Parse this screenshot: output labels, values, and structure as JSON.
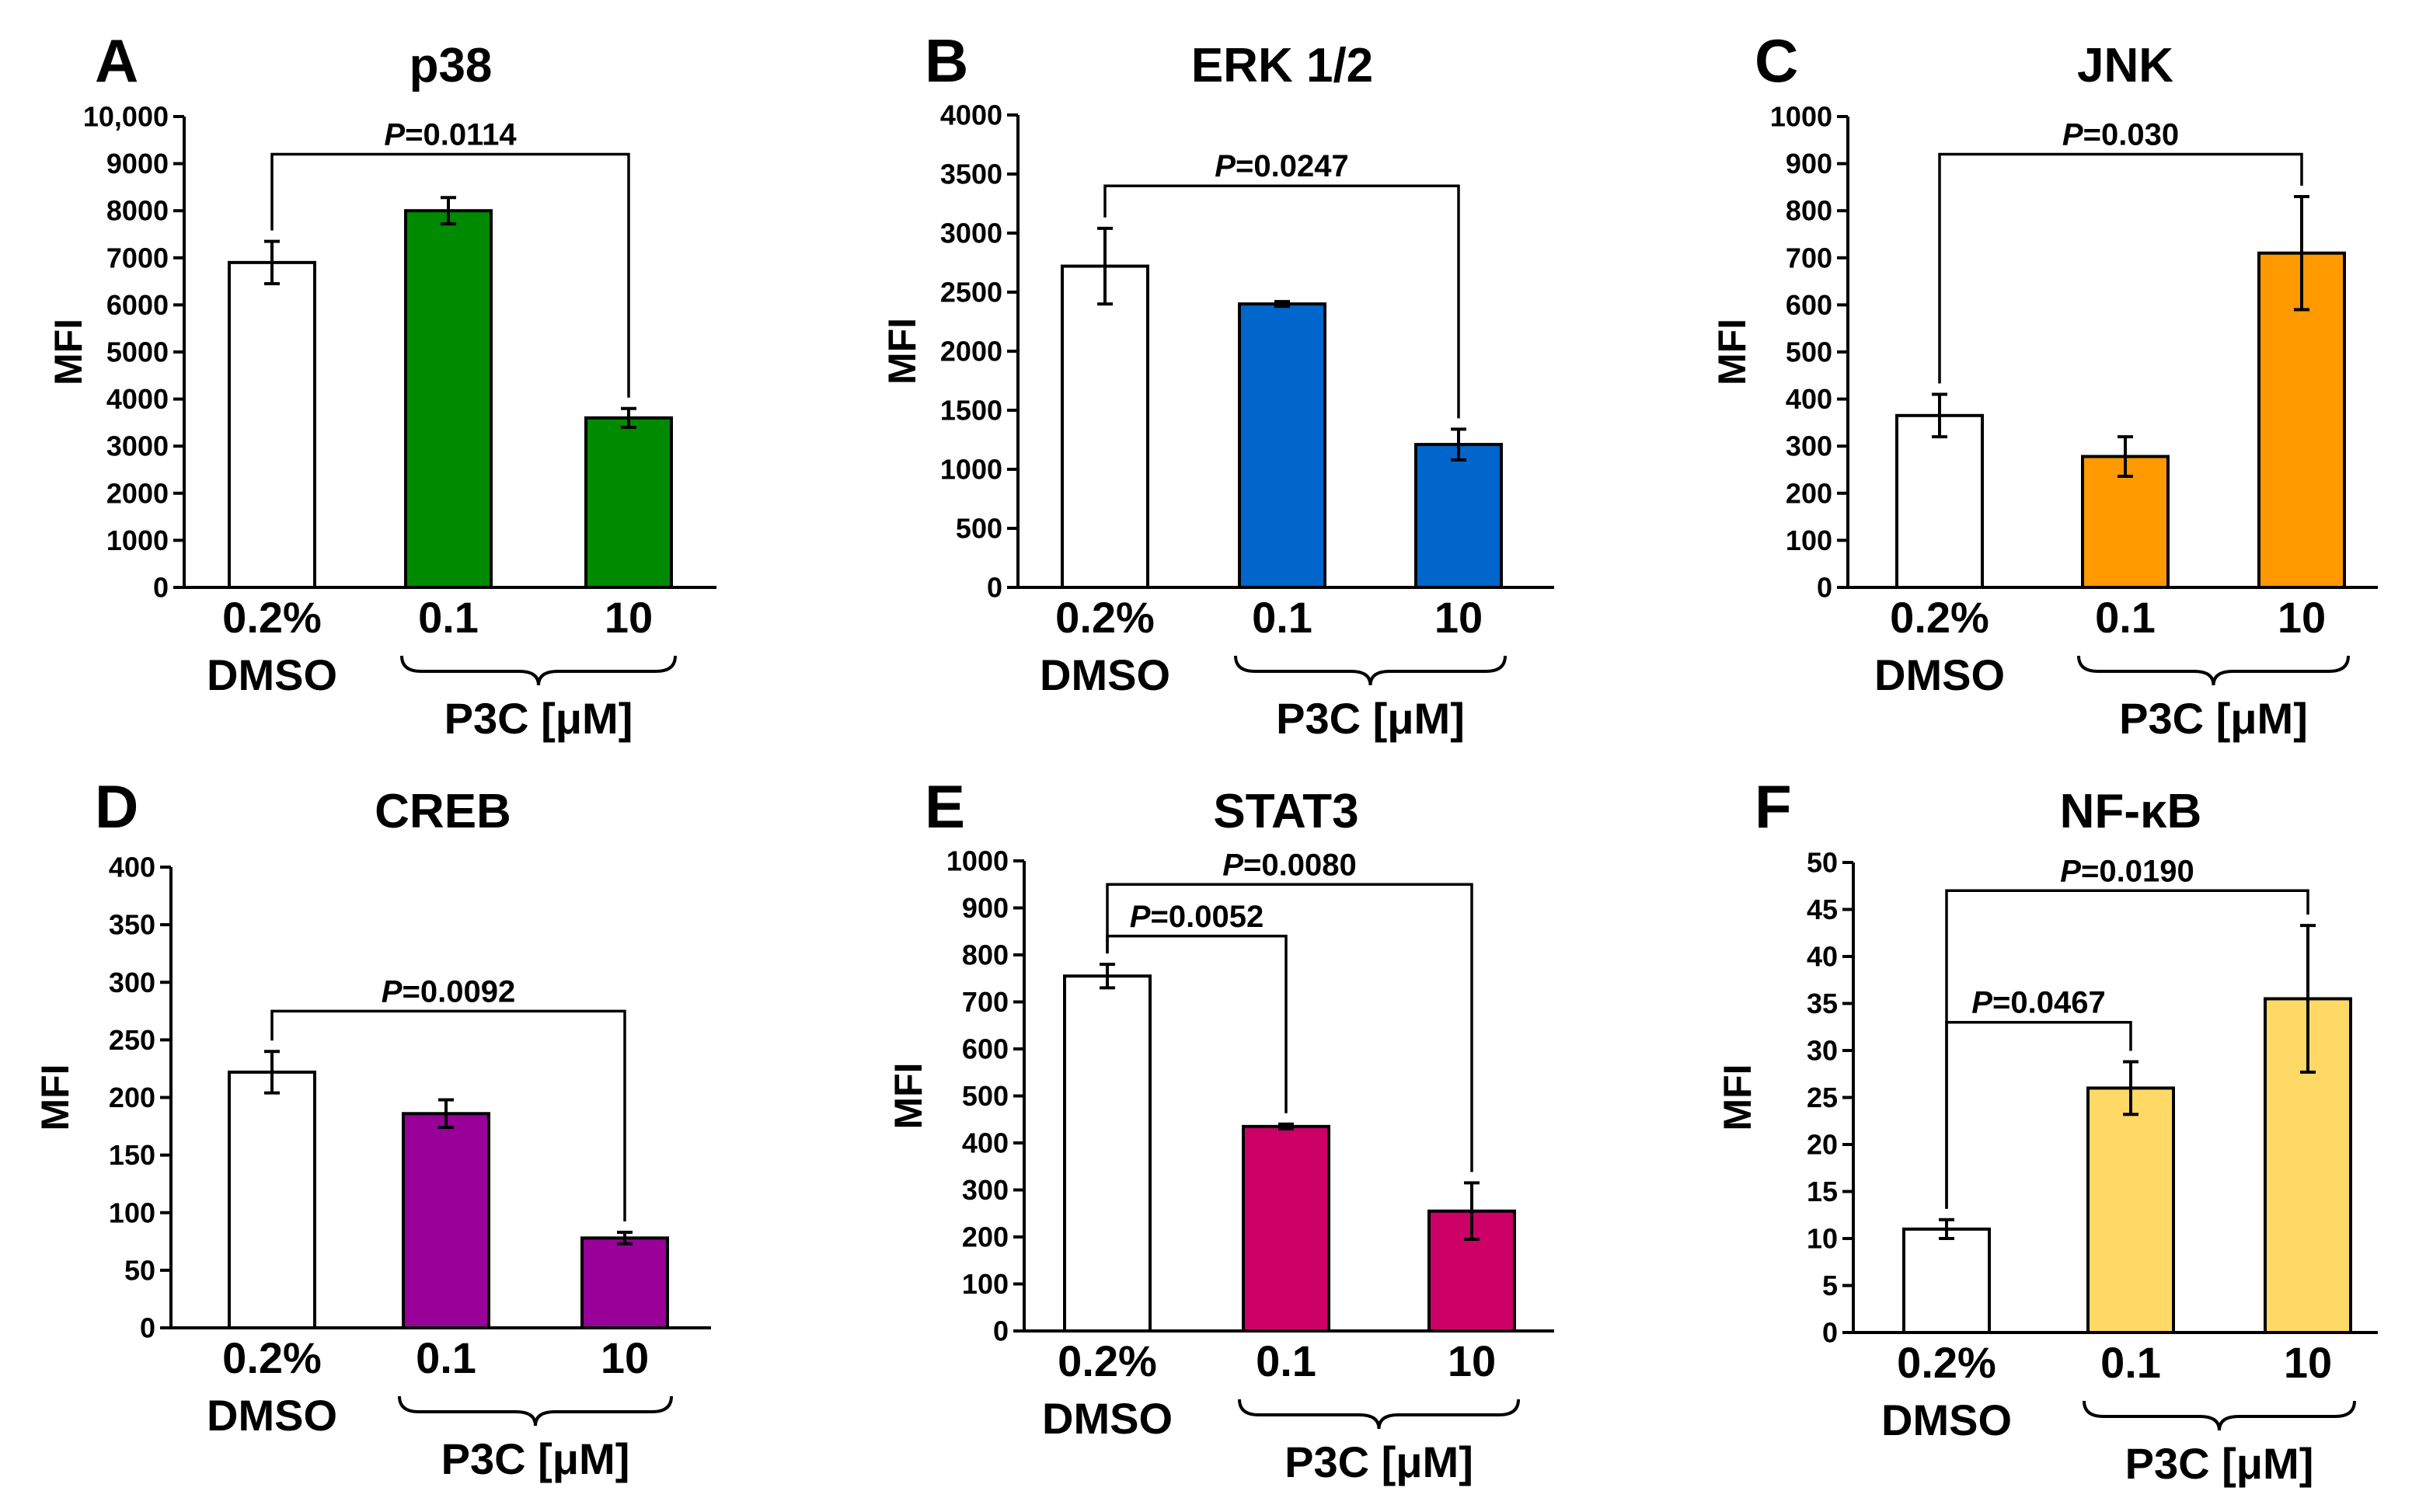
{
  "chart_data": [
    {
      "type": "bar",
      "letter": "A",
      "title": "p38",
      "ylabel": "MFI",
      "ylim": [
        0,
        10000
      ],
      "ticks": [
        "0",
        "1000",
        "2000",
        "3000",
        "4000",
        "5000",
        "6000",
        "7000",
        "8000",
        "9000",
        "10,000"
      ],
      "tick_values": [
        0,
        1000,
        2000,
        3000,
        4000,
        5000,
        6000,
        7000,
        8000,
        9000,
        10000
      ],
      "categories": [
        "0.2%",
        "0.1",
        "10"
      ],
      "vehicle_label": "DMSO",
      "group_label": "P3C [μM]",
      "values": [
        6900,
        8000,
        3600
      ],
      "errors": [
        450,
        280,
        200
      ],
      "colors": [
        "#ffffff",
        "#008a00",
        "#008a00"
      ],
      "comparisons": [
        {
          "from": 0,
          "to": 2,
          "label_italic": "P",
          "label_rest": "=0.0114",
          "level": 9200
        }
      ]
    },
    {
      "type": "bar",
      "letter": "B",
      "title": "ERK 1/2",
      "ylabel": "MFI",
      "ylim": [
        0,
        4000
      ],
      "ticks": [
        "0",
        "500",
        "1000",
        "1500",
        "2000",
        "2500",
        "3000",
        "3500",
        "4000"
      ],
      "tick_values": [
        0,
        500,
        1000,
        1500,
        2000,
        2500,
        3000,
        3500,
        4000
      ],
      "categories": [
        "0.2%",
        "0.1",
        "10"
      ],
      "vehicle_label": "DMSO",
      "group_label": "P3C [μM]",
      "values": [
        2720,
        2400,
        1210
      ],
      "errors": [
        320,
        20,
        130
      ],
      "colors": [
        "#ffffff",
        "#0066cc",
        "#0066cc"
      ],
      "comparisons": [
        {
          "from": 0,
          "to": 2,
          "label_italic": "P",
          "label_rest": "=0.0247",
          "level": 3400
        }
      ]
    },
    {
      "type": "bar",
      "letter": "C",
      "title": "JNK",
      "ylabel": "MFI",
      "ylim": [
        0,
        1000
      ],
      "ticks": [
        "0",
        "100",
        "200",
        "300",
        "400",
        "500",
        "600",
        "700",
        "800",
        "900",
        "1000"
      ],
      "tick_values": [
        0,
        100,
        200,
        300,
        400,
        500,
        600,
        700,
        800,
        900,
        1000
      ],
      "categories": [
        "0.2%",
        "0.1",
        "10"
      ],
      "vehicle_label": "DMSO",
      "group_label": "P3C [μM]",
      "values": [
        365,
        278,
        710
      ],
      "errors": [
        45,
        42,
        120
      ],
      "colors": [
        "#ffffff",
        "#ff9900",
        "#ff9900"
      ],
      "comparisons": [
        {
          "from": 0,
          "to": 2,
          "label_italic": "P",
          "label_rest": "=0.030",
          "level": 920
        }
      ]
    },
    {
      "type": "bar",
      "letter": "D",
      "title": "CREB",
      "ylabel": "MFI",
      "ylim": [
        0,
        400
      ],
      "ticks": [
        "0",
        "50",
        "100",
        "150",
        "200",
        "250",
        "300",
        "350",
        "400"
      ],
      "tick_values": [
        0,
        50,
        100,
        150,
        200,
        250,
        300,
        350,
        400
      ],
      "categories": [
        "0.2%",
        "0.1",
        "10"
      ],
      "vehicle_label": "DMSO",
      "group_label": "P3C [μM]",
      "values": [
        222,
        186,
        78
      ],
      "errors": [
        18,
        12,
        5
      ],
      "colors": [
        "#ffffff",
        "#990099",
        "#990099"
      ],
      "comparisons": [
        {
          "from": 0,
          "to": 2,
          "label_italic": "P",
          "label_rest": "=0.0092",
          "level": 275
        }
      ]
    },
    {
      "type": "bar",
      "letter": "E",
      "title": "STAT3",
      "ylabel": "MFI",
      "ylim": [
        0,
        1000
      ],
      "ticks": [
        "0",
        "100",
        "200",
        "300",
        "400",
        "500",
        "600",
        "700",
        "800",
        "900",
        "1000"
      ],
      "tick_values": [
        0,
        100,
        200,
        300,
        400,
        500,
        600,
        700,
        800,
        900,
        1000
      ],
      "categories": [
        "0.2%",
        "0.1",
        "10"
      ],
      "vehicle_label": "DMSO",
      "group_label": "P3C [μM]",
      "values": [
        755,
        435,
        255
      ],
      "errors": [
        25,
        5,
        60
      ],
      "colors": [
        "#ffffff",
        "#cc0066",
        "#cc0066"
      ],
      "comparisons": [
        {
          "from": 0,
          "to": 1,
          "label_italic": "P",
          "label_rest": "=0.0052",
          "level": 840
        },
        {
          "from": 0,
          "to": 2,
          "label_italic": "P",
          "label_rest": "=0.0080",
          "level": 950
        }
      ]
    },
    {
      "type": "bar",
      "letter": "F",
      "title": "NF-κB",
      "ylabel": "MFI",
      "ylim": [
        0,
        50
      ],
      "ticks": [
        "0",
        "5",
        "10",
        "15",
        "20",
        "25",
        "30",
        "35",
        "40",
        "45",
        "50"
      ],
      "tick_values": [
        0,
        5,
        10,
        15,
        20,
        25,
        30,
        35,
        40,
        45,
        50
      ],
      "categories": [
        "0.2%",
        "0.1",
        "10"
      ],
      "vehicle_label": "DMSO",
      "group_label": "P3C [μM]",
      "values": [
        11,
        26,
        35.5
      ],
      "errors": [
        1,
        2.8,
        7.8
      ],
      "colors": [
        "#ffffff",
        "#ffd966",
        "#ffd966"
      ],
      "comparisons": [
        {
          "from": 0,
          "to": 1,
          "label_italic": "P",
          "label_rest": "=0.0467",
          "level": 33
        },
        {
          "from": 0,
          "to": 2,
          "label_italic": "P",
          "label_rest": "=0.0190",
          "level": 47
        }
      ]
    }
  ]
}
